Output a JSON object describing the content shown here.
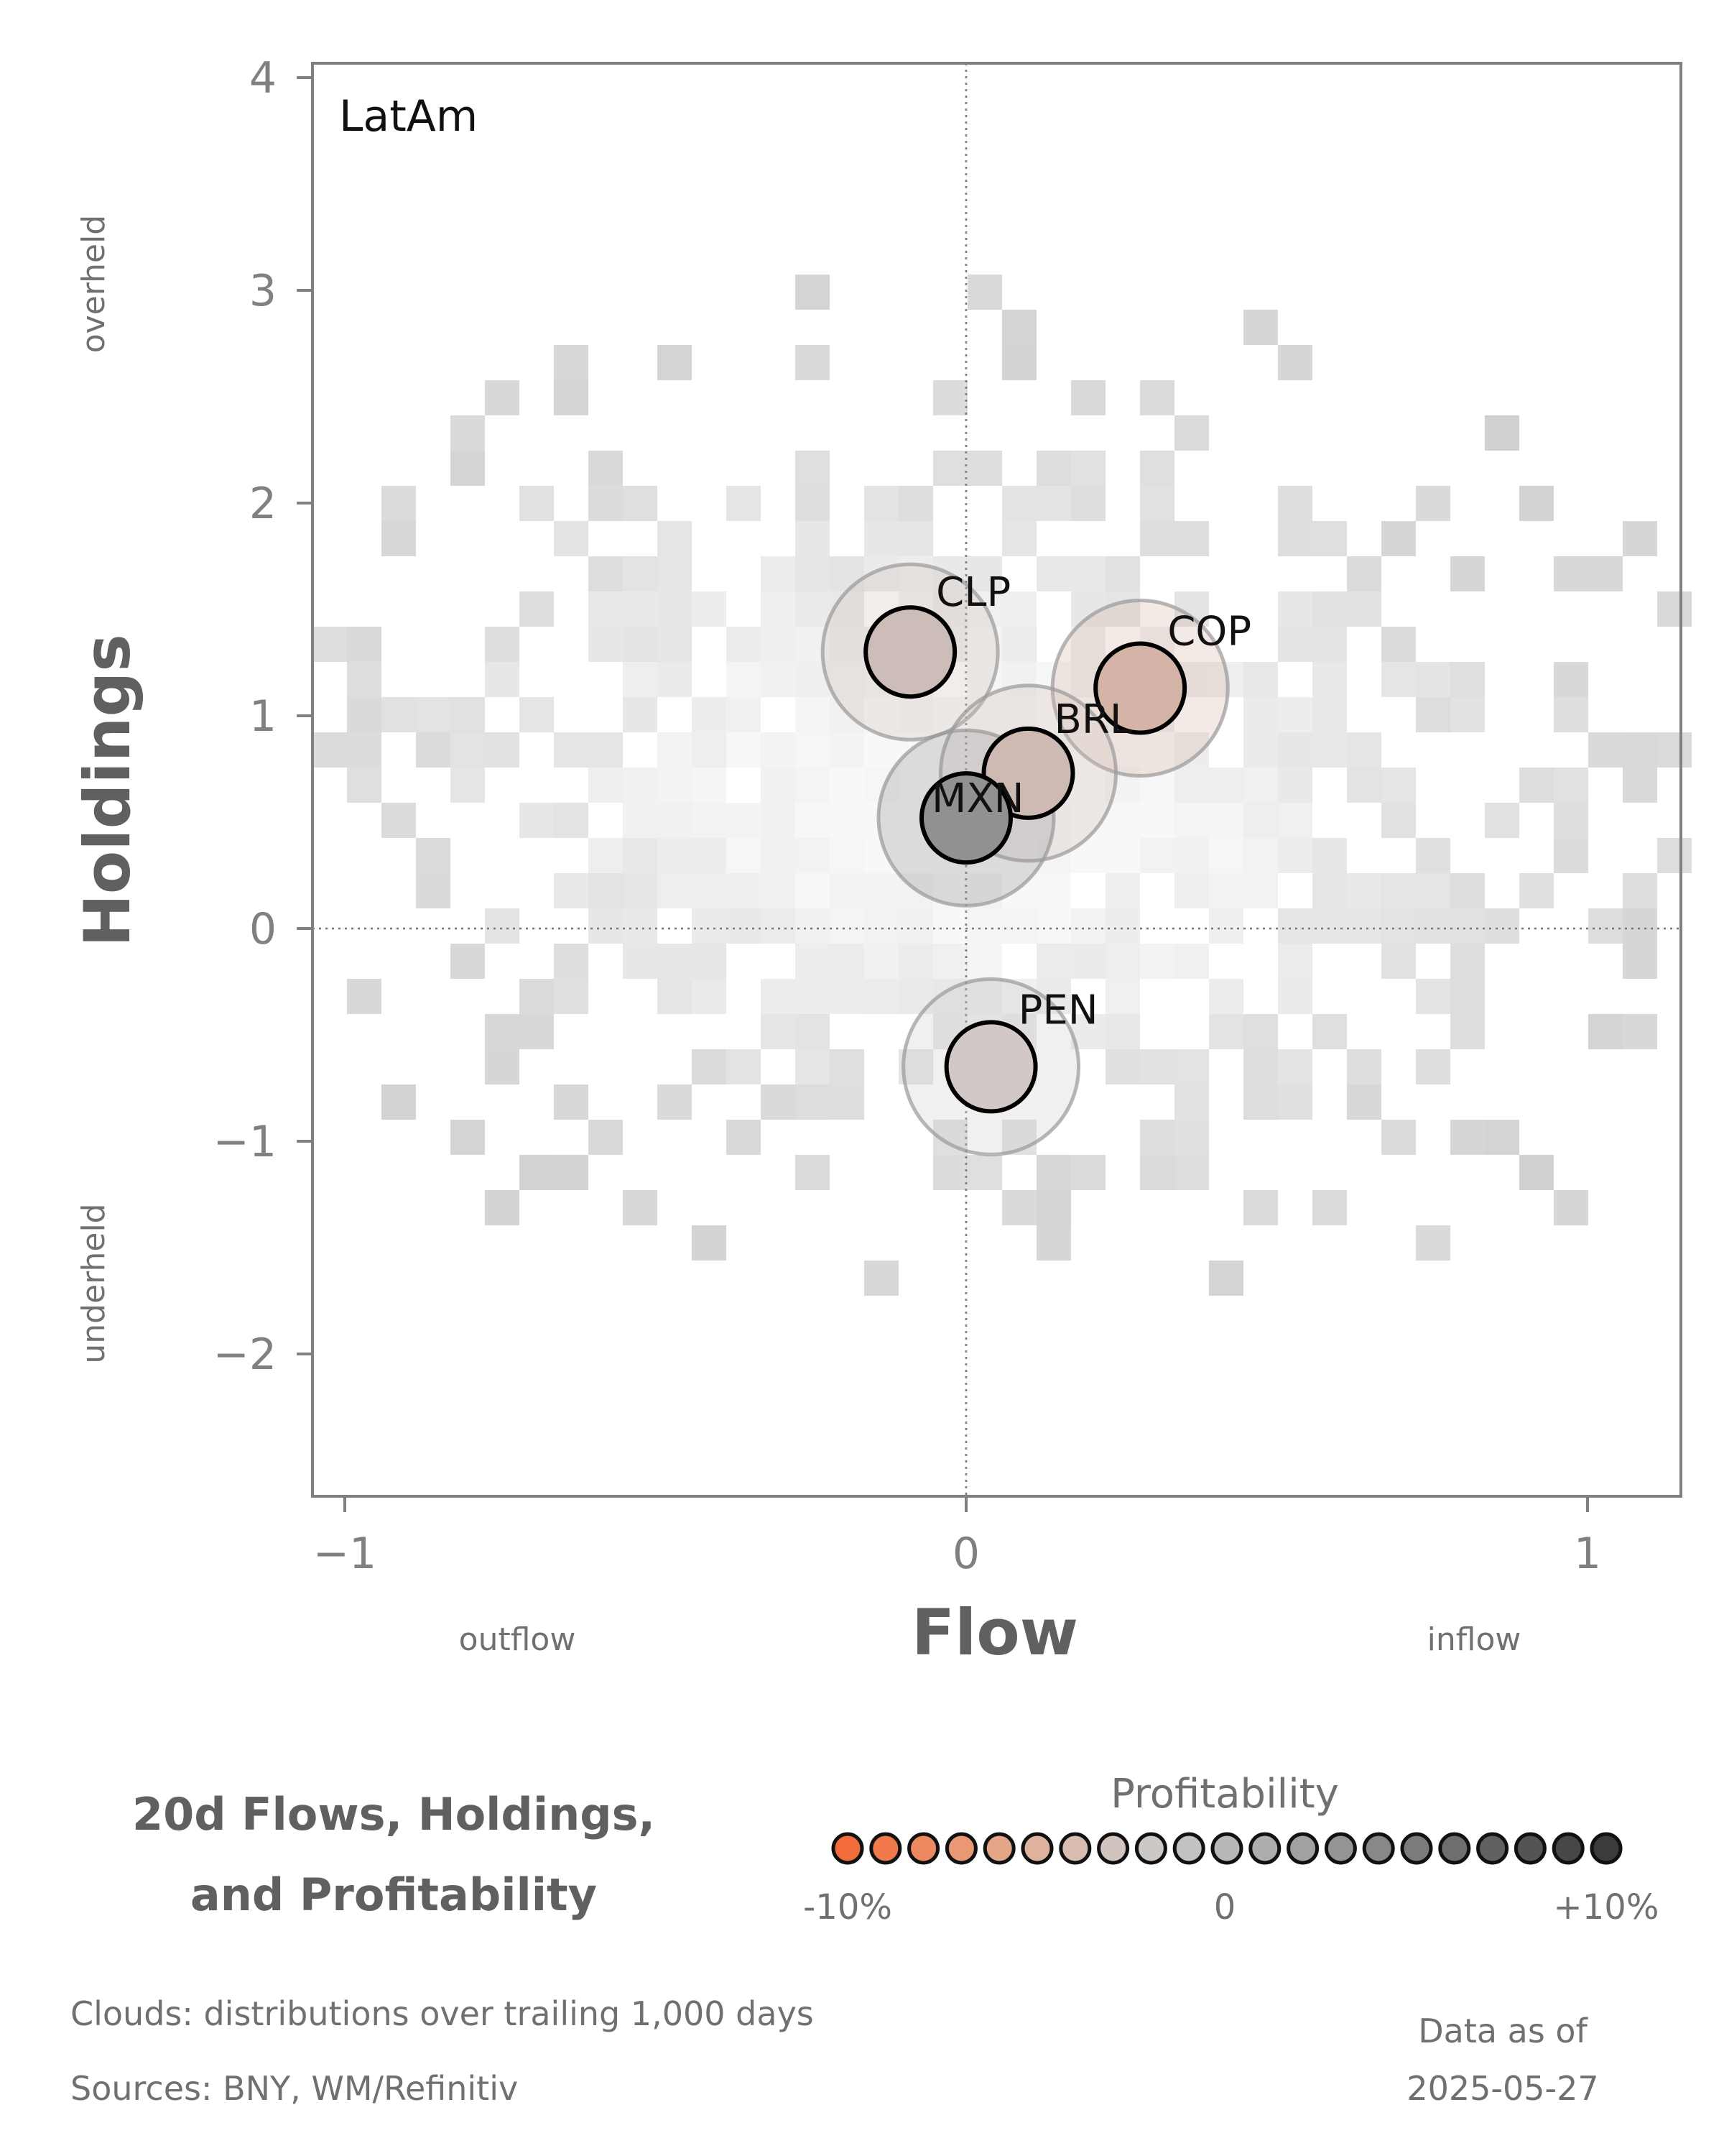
{
  "chart_data": {
    "type": "scatter",
    "panel_label": "LatAm",
    "xlabel": "Flow",
    "ylabel": "Holdings",
    "x_left_hint": "outflow",
    "x_right_hint": "inflow",
    "y_top_hint": "overheld",
    "y_bottom_hint": "underheld",
    "xlim": [
      -1.05,
      1.15
    ],
    "ylim": [
      -2.65,
      4.08
    ],
    "x_ticks": [
      {
        "v": -1,
        "label": "−1"
      },
      {
        "v": 0,
        "label": "0"
      },
      {
        "v": 1,
        "label": "1"
      }
    ],
    "y_ticks": [
      {
        "v": -2,
        "label": "−2"
      },
      {
        "v": -1,
        "label": "−1"
      },
      {
        "v": 0,
        "label": "0"
      },
      {
        "v": 1,
        "label": "1"
      },
      {
        "v": 2,
        "label": "2"
      },
      {
        "v": 3,
        "label": "3"
      },
      {
        "v": 4,
        "label": "4"
      }
    ],
    "reference_lines": {
      "x": 0,
      "y": 0
    },
    "points": [
      {
        "name": "CLP",
        "x": -0.09,
        "y": 1.3,
        "color": "#cdbdb8"
      },
      {
        "name": "COP",
        "x": 0.28,
        "y": 1.13,
        "color": "#d3b4a6"
      },
      {
        "name": "BRL",
        "x": 0.1,
        "y": 0.73,
        "color": "#cfbab3"
      },
      {
        "name": "MXN",
        "x": 0.0,
        "y": 0.52,
        "color": "#8f9192"
      },
      {
        "name": "PEN",
        "x": 0.04,
        "y": -0.65,
        "color": "#d2c8c5"
      }
    ],
    "cloud": {
      "description_shown": false
    }
  },
  "legend": {
    "title_line1": "20d Flows, Holdings,",
    "title_line2": "and Profitability",
    "scale_title": "Profitability",
    "scale_min_label": "-10%",
    "scale_mid_label": "0",
    "scale_max_label": "+10%",
    "scale_colors": [
      "#f26b3a",
      "#f07a4c",
      "#ed895f",
      "#ea9873",
      "#e5a688",
      "#dfb29e",
      "#d8bcb0",
      "#d1c4be",
      "#cbc8c6",
      "#c2c2c2",
      "#b8b8b8",
      "#adadad",
      "#a1a1a1",
      "#959595",
      "#888888",
      "#7b7b7b",
      "#6e6e6e",
      "#616161",
      "#545454",
      "#474747",
      "#3b3b3b"
    ]
  },
  "footer": {
    "clouds_note": "Clouds:  distributions over trailing 1,000 days",
    "sources_note": "Sources:  BNY, WM/Refinitiv",
    "asof_label": "Data as of",
    "asof_date": "2025-05-27"
  }
}
